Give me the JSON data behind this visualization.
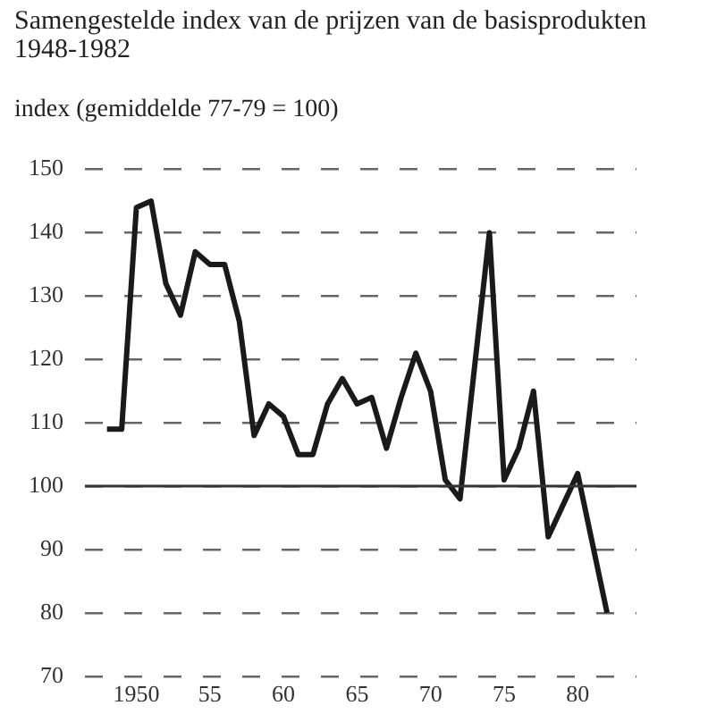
{
  "chart_data": {
    "type": "line",
    "title": "Samengestelde index van de prijzen van de basisprodukten 1948-1982",
    "ylabel": "index (gemiddelde 77-79 = 100)",
    "x": [
      1948,
      1949,
      1950,
      1951,
      1952,
      1953,
      1954,
      1955,
      1956,
      1957,
      1958,
      1959,
      1960,
      1961,
      1962,
      1963,
      1964,
      1965,
      1966,
      1967,
      1968,
      1969,
      1970,
      1971,
      1972,
      1973,
      1974,
      1975,
      1976,
      1977,
      1978,
      1979,
      1980,
      1981,
      1982
    ],
    "series": [
      {
        "color": "#1a1a1a",
        "values": [
          109,
          109,
          144,
          145,
          132,
          127,
          137,
          135,
          135,
          126,
          108,
          113,
          111,
          105,
          105,
          113,
          117,
          113,
          114,
          106,
          114,
          121,
          115,
          101,
          98,
          119,
          140,
          101,
          106,
          115,
          92,
          97,
          102,
          91,
          80
        ]
      }
    ],
    "xlim": [
      1946.5,
      1984
    ],
    "xticks": [
      {
        "value": 1950,
        "label": "1950"
      },
      {
        "value": 1955,
        "label": "55"
      },
      {
        "value": 1960,
        "label": "60"
      },
      {
        "value": 1965,
        "label": "65"
      },
      {
        "value": 1970,
        "label": "70"
      },
      {
        "value": 1975,
        "label": "75"
      },
      {
        "value": 1980,
        "label": "80"
      }
    ],
    "ylim": [
      70,
      150
    ],
    "yticks": [
      70,
      80,
      90,
      100,
      110,
      120,
      130,
      140,
      150
    ],
    "grid": "y",
    "marker": "none",
    "line_style": "solid",
    "legend": false,
    "ref_lines": [
      {
        "axis": "y",
        "value": 100,
        "color": "#333333"
      }
    ]
  }
}
